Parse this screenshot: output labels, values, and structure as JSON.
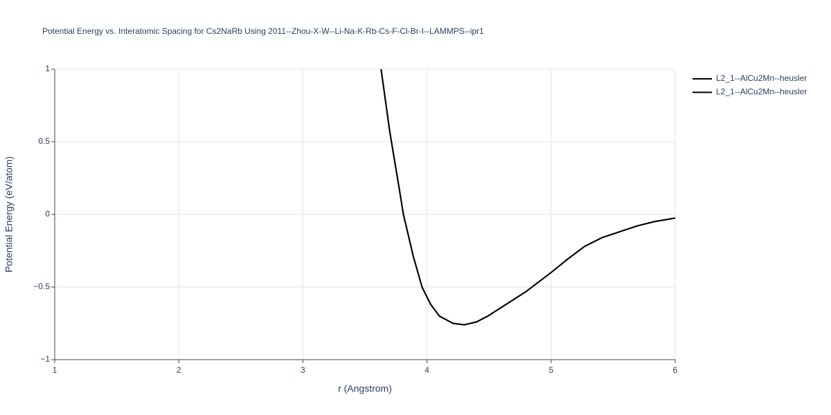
{
  "chart_data": {
    "type": "line",
    "title": "Potential Energy vs. Interatomic Spacing for Cs2NaRb Using 2011--Zhou-X-W--Li-Na-K-Rb-Cs-F-Cl-Br-I--LAMMPS--ipr1",
    "x_label": "r (Angstrom)",
    "y_label": "Potential Energy (eV/atom)",
    "x": [
      3.63,
      3.7,
      3.77,
      3.81,
      3.89,
      3.96,
      4.03,
      4.1,
      4.21,
      4.3,
      4.4,
      4.49,
      4.6,
      4.8,
      5.0,
      5.13,
      5.27,
      5.41,
      5.55,
      5.69,
      5.83,
      6.0
    ],
    "series": [
      {
        "name": "L2_1--AlCu2Mn--heusler",
        "color": "#000000",
        "values": [
          1,
          0.57,
          0.21,
          0,
          -0.29,
          -0.5,
          -0.62,
          -0.7,
          -0.75,
          -0.76,
          -0.74,
          -0.7,
          -0.64,
          -0.53,
          -0.4,
          -0.31,
          -0.22,
          -0.16,
          -0.12,
          -0.08,
          -0.05,
          -0.025
        ]
      },
      {
        "name": "L2_1--AlCu2Mn--heusler",
        "color": "#000000",
        "values": [
          1,
          0.57,
          0.21,
          0,
          -0.29,
          -0.5,
          -0.62,
          -0.7,
          -0.75,
          -0.76,
          -0.74,
          -0.7,
          -0.64,
          -0.53,
          -0.4,
          -0.31,
          -0.22,
          -0.16,
          -0.12,
          -0.08,
          -0.05,
          -0.025
        ]
      }
    ],
    "xlim": [
      1,
      6
    ],
    "xticks": [
      1,
      2,
      3,
      4,
      5,
      6
    ],
    "ylim": [
      -1,
      1
    ],
    "yticks": [
      {
        "value": -1,
        "label": "−1"
      },
      {
        "value": -0.5,
        "label": "−0.5"
      },
      0,
      0.5,
      1
    ],
    "grid": true,
    "legend": "right"
  }
}
